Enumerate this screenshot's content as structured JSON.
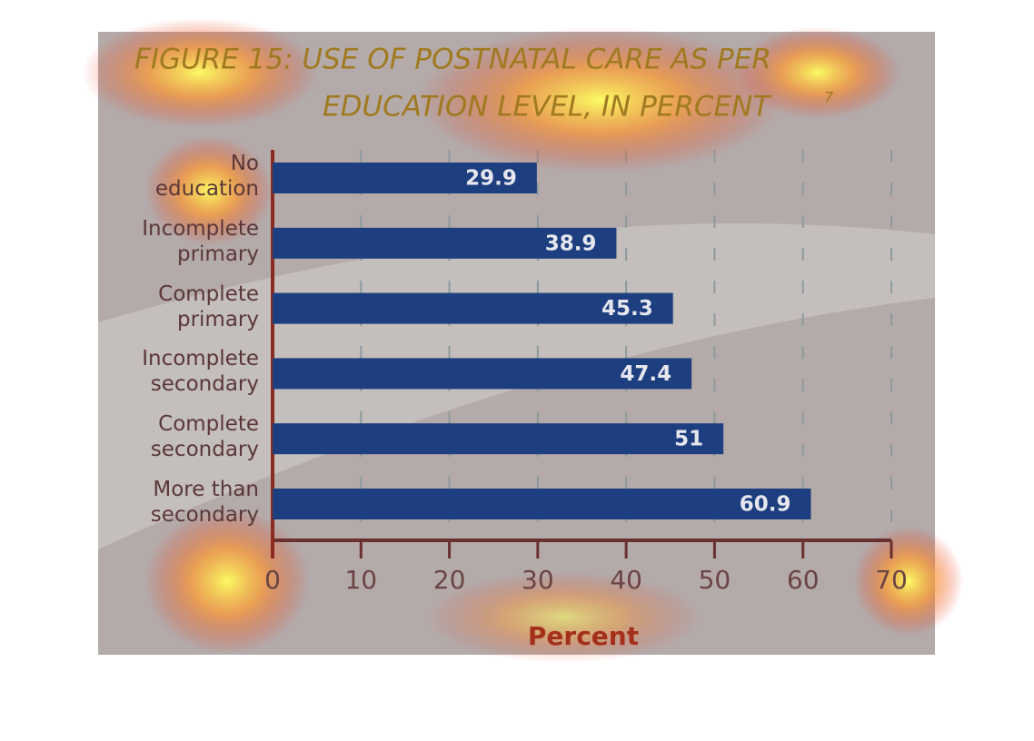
{
  "chart_data": {
    "type": "bar",
    "orientation": "horizontal",
    "title": "FIGURE 15: USE OF POSTNATAL CARE AS PER",
    "title_line2": "EDUCATION LEVEL, IN PERCENT",
    "title_note": "7",
    "categories": [
      "No\neducation",
      "Incomplete\nprimary",
      "Complete\nprimary",
      "Incomplete\nsecondary",
      "Complete\nsecondary",
      "More than\nsecondary"
    ],
    "values": [
      29.9,
      38.9,
      45.3,
      47.4,
      51,
      60.9
    ],
    "color": "#1d3f80",
    "xlabel": "Percent",
    "xlim": [
      0,
      70
    ],
    "xticks": [
      0,
      10,
      20,
      30,
      40,
      50,
      60,
      70
    ],
    "grid": true
  }
}
